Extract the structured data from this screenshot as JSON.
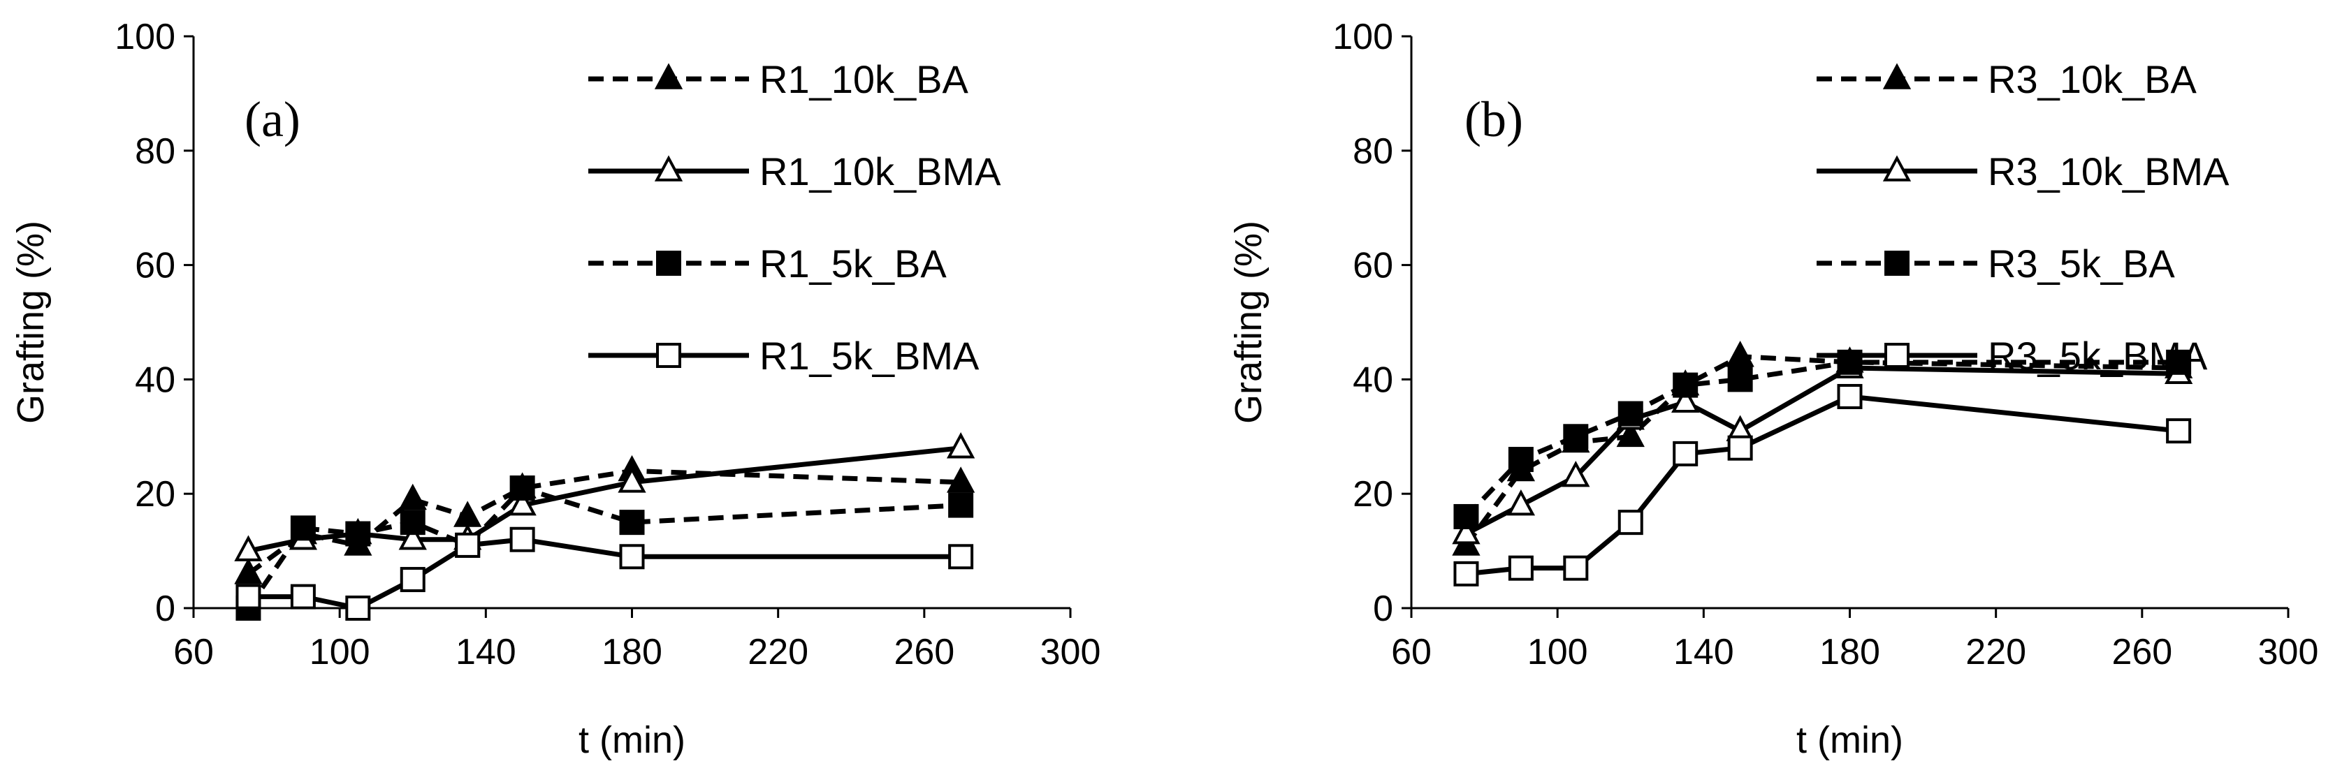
{
  "chart_data": [
    {
      "type": "line",
      "panel_label": "(a)",
      "xlabel": "t (min)",
      "ylabel": "Grafting (%)",
      "xlim": [
        60,
        300
      ],
      "ylim": [
        0,
        100
      ],
      "xticks": [
        60,
        100,
        140,
        180,
        220,
        260,
        300
      ],
      "yticks": [
        0,
        20,
        40,
        60,
        80,
        100
      ],
      "legend_position": "top-right",
      "series": [
        {
          "name": "R1_10k_BA",
          "marker": "triangle-filled",
          "line": "dashed",
          "x": [
            75,
            90,
            105,
            120,
            135,
            150,
            180,
            270
          ],
          "y": [
            6,
            13,
            11,
            19,
            16,
            21,
            24,
            22
          ]
        },
        {
          "name": "R1_10k_BMA",
          "marker": "triangle-open",
          "line": "solid",
          "x": [
            75,
            90,
            105,
            120,
            135,
            150,
            180,
            270
          ],
          "y": [
            10,
            12,
            13,
            12,
            12,
            18,
            22,
            28
          ]
        },
        {
          "name": "R1_5k_BA",
          "marker": "square-filled",
          "line": "dashed",
          "x": [
            75,
            90,
            105,
            120,
            135,
            150,
            180,
            270
          ],
          "y": [
            0,
            14,
            13,
            15,
            11,
            21,
            15,
            18
          ]
        },
        {
          "name": "R1_5k_BMA",
          "marker": "square-open",
          "line": "solid",
          "x": [
            75,
            90,
            105,
            120,
            135,
            150,
            180,
            270
          ],
          "y": [
            2,
            2,
            0,
            5,
            11,
            12,
            9,
            9
          ]
        }
      ]
    },
    {
      "type": "line",
      "panel_label": "(b)",
      "xlabel": "t (min)",
      "ylabel": "Grafting (%)",
      "xlim": [
        60,
        300
      ],
      "ylim": [
        0,
        100
      ],
      "xticks": [
        60,
        100,
        140,
        180,
        220,
        260,
        300
      ],
      "yticks": [
        0,
        20,
        40,
        60,
        80,
        100
      ],
      "legend_position": "top-right",
      "series": [
        {
          "name": "R3_10k_BA",
          "marker": "triangle-filled",
          "line": "dashed",
          "x": [
            75,
            90,
            105,
            120,
            135,
            150,
            180,
            270
          ],
          "y": [
            11,
            24,
            29,
            30,
            39,
            44,
            43,
            42
          ]
        },
        {
          "name": "R3_10k_BMA",
          "marker": "triangle-open",
          "line": "solid",
          "x": [
            75,
            90,
            105,
            120,
            135,
            150,
            180,
            270
          ],
          "y": [
            13,
            18,
            23,
            33,
            36,
            31,
            42,
            41
          ]
        },
        {
          "name": "R3_5k_BA",
          "marker": "square-filled",
          "line": "dashed",
          "x": [
            75,
            90,
            105,
            120,
            135,
            150,
            180,
            270
          ],
          "y": [
            16,
            26,
            30,
            34,
            39,
            40,
            43,
            43
          ]
        },
        {
          "name": "R3_5k_BMA",
          "marker": "square-open",
          "line": "solid",
          "x": [
            75,
            90,
            105,
            120,
            135,
            150,
            180,
            270
          ],
          "y": [
            6,
            7,
            7,
            15,
            27,
            28,
            37,
            31
          ]
        }
      ]
    }
  ]
}
